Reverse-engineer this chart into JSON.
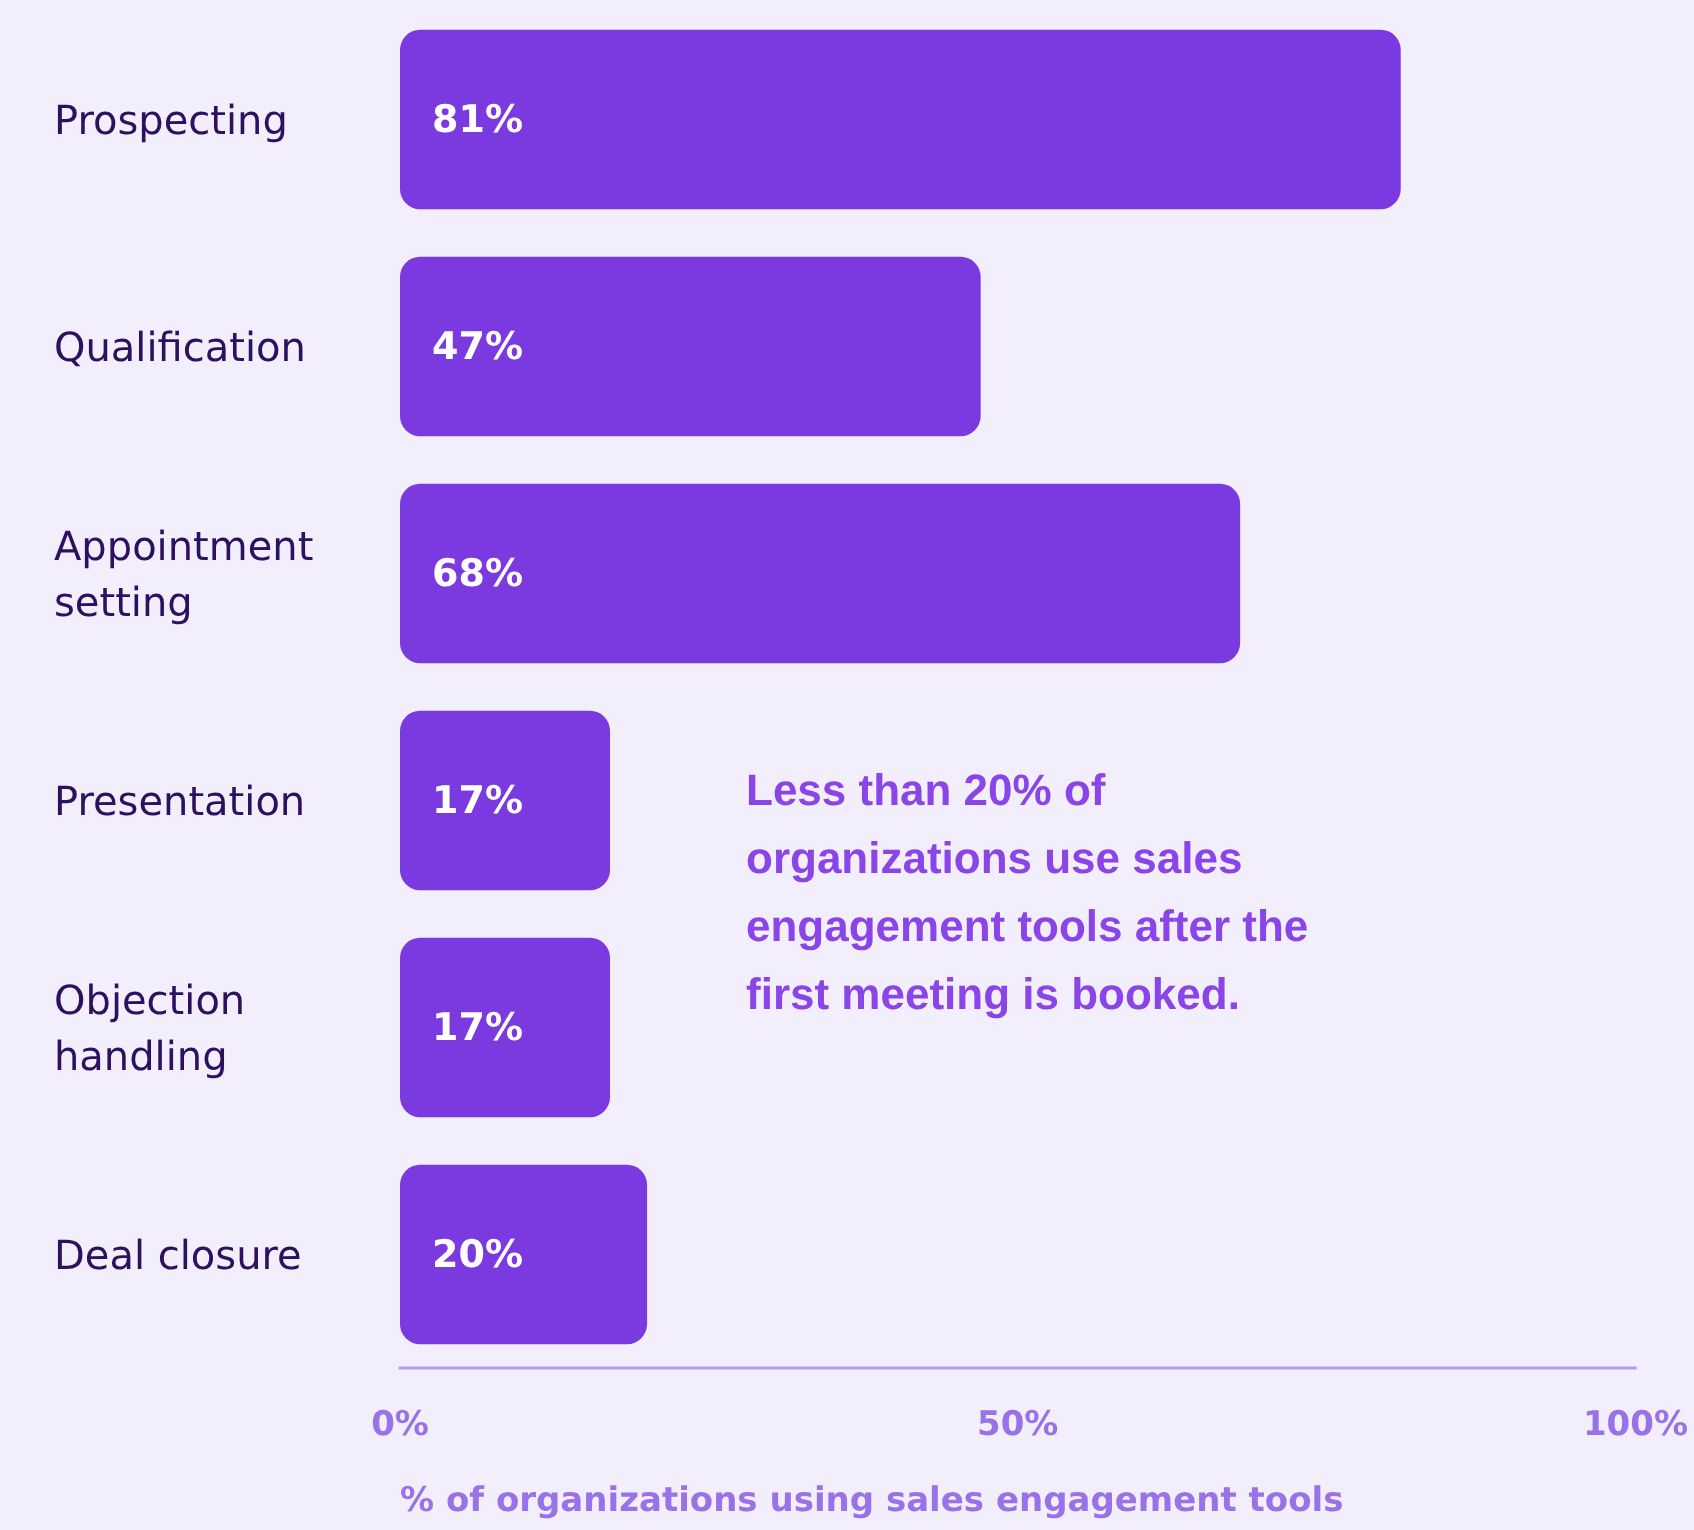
{
  "chart_data": {
    "type": "bar",
    "orientation": "horizontal",
    "categories": [
      "Prospecting",
      "Qualification",
      "Appointment setting",
      "Presentation",
      "Objection handling",
      "Deal closure"
    ],
    "values": [
      81,
      47,
      68,
      17,
      17,
      20
    ],
    "value_labels": [
      "81%",
      "47%",
      "68%",
      "17%",
      "17%",
      "20%"
    ],
    "color": "#7b3ae0",
    "xlim": [
      0,
      100
    ],
    "xticks": [
      {
        "value": 0,
        "label": "0%"
      },
      {
        "value": 50,
        "label": "50%"
      },
      {
        "value": 100,
        "label": "100%"
      }
    ],
    "xlabel": "% of organizations using sales engagement tools",
    "annotations": [
      "Less than 20% of organizations use sales engagement tools after the first meeting is booked."
    ]
  }
}
